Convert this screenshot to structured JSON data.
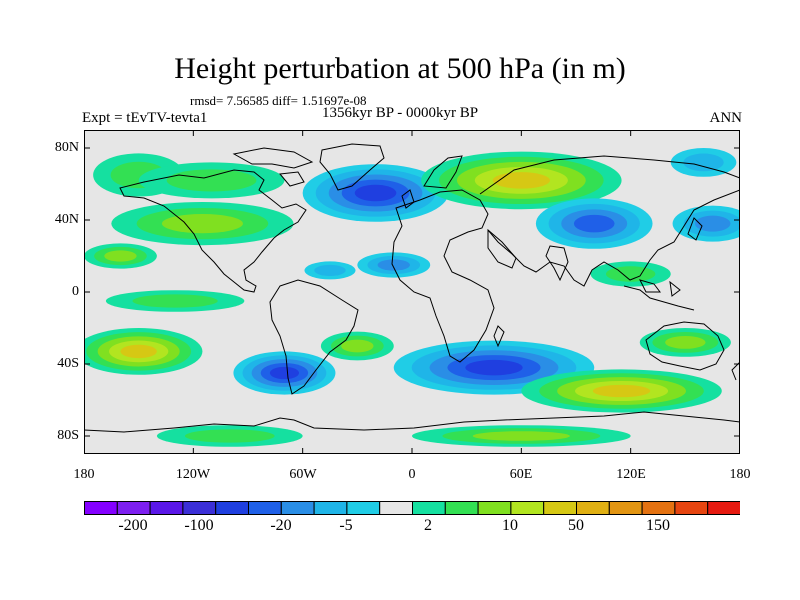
{
  "title": "Height perturbation at 500 hPa (in m)",
  "stats_line": "rmsd= 7.56585  diff= 1.51697e-08",
  "left_label": "Expt = tEvTV-tevta1",
  "center_label": "1356kyr BP - 0000kyr BP",
  "right_label": "ANN",
  "map": {
    "projection": "cylindrical equidistant",
    "lon_range": [
      -180,
      180
    ],
    "lat_range": [
      -90,
      90
    ],
    "background_color": "#e6e6e6",
    "coastline_color": "#000000",
    "lat_ticks": [
      {
        "lat": 80,
        "label": "80N"
      },
      {
        "lat": 40,
        "label": "40N"
      },
      {
        "lat": 0,
        "label": "0"
      },
      {
        "lat": -40,
        "label": "40S"
      },
      {
        "lat": -80,
        "label": "80S"
      }
    ],
    "lon_ticks": [
      {
        "lon": -180,
        "label": "180"
      },
      {
        "lon": -120,
        "label": "120W"
      },
      {
        "lon": -60,
        "label": "60W"
      },
      {
        "lon": 0,
        "label": "0"
      },
      {
        "lon": 60,
        "label": "60E"
      },
      {
        "lon": 120,
        "label": "120E"
      },
      {
        "lon": 180,
        "label": "180"
      }
    ],
    "anomaly_centers": [
      {
        "lon": -160,
        "lat": 20,
        "ry": 7,
        "rx": 20,
        "value": 5
      },
      {
        "lon": -115,
        "lat": 38,
        "ry": 12,
        "rx": 50,
        "value": 8
      },
      {
        "lon": -150,
        "lat": 65,
        "ry": 12,
        "rx": 25,
        "value": 4
      },
      {
        "lon": -110,
        "lat": 62,
        "ry": 10,
        "rx": 40,
        "value": 4
      },
      {
        "lon": -20,
        "lat": 55,
        "ry": 16,
        "rx": 40,
        "value": -40
      },
      {
        "lon": -10,
        "lat": 15,
        "ry": 7,
        "rx": 20,
        "value": -5
      },
      {
        "lon": -45,
        "lat": 12,
        "ry": 5,
        "rx": 14,
        "value": -4
      },
      {
        "lon": 60,
        "lat": 62,
        "ry": 16,
        "rx": 55,
        "value": 25
      },
      {
        "lon": 100,
        "lat": 38,
        "ry": 14,
        "rx": 32,
        "value": -14
      },
      {
        "lon": 165,
        "lat": 38,
        "ry": 10,
        "rx": 22,
        "value": -7
      },
      {
        "lon": 160,
        "lat": 72,
        "ry": 8,
        "rx": 18,
        "value": -4
      },
      {
        "lon": 120,
        "lat": 10,
        "ry": 7,
        "rx": 22,
        "value": 4
      },
      {
        "lon": -130,
        "lat": -5,
        "ry": 6,
        "rx": 38,
        "value": 4
      },
      {
        "lon": -150,
        "lat": -33,
        "ry": 13,
        "rx": 35,
        "value": 45
      },
      {
        "lon": -70,
        "lat": -45,
        "ry": 12,
        "rx": 28,
        "value": -40
      },
      {
        "lon": -30,
        "lat": -30,
        "ry": 8,
        "rx": 20,
        "value": 5
      },
      {
        "lon": 45,
        "lat": -42,
        "ry": 15,
        "rx": 55,
        "value": -45
      },
      {
        "lon": 115,
        "lat": -55,
        "ry": 12,
        "rx": 55,
        "value": 45
      },
      {
        "lon": 150,
        "lat": -28,
        "ry": 8,
        "rx": 25,
        "value": 6
      },
      {
        "lon": -100,
        "lat": -80,
        "ry": 6,
        "rx": 40,
        "value": 4
      },
      {
        "lon": 60,
        "lat": -80,
        "ry": 6,
        "rx": 60,
        "value": 5
      }
    ]
  },
  "colorbar": {
    "colors": [
      "#8400ff",
      "#7d1ff0",
      "#5a17e8",
      "#3b2fd7",
      "#1f3fe0",
      "#1f60e8",
      "#2a8ee6",
      "#1fb5e8",
      "#20cde6",
      "#e6e6e6",
      "#15e0a0",
      "#33e053",
      "#80e020",
      "#b2e520",
      "#d6c814",
      "#e0b013",
      "#e29512",
      "#e47211",
      "#e64510",
      "#e61a10"
    ],
    "tick_labels": [
      {
        "label": "-200",
        "index": 1
      },
      {
        "label": "-100",
        "index": 3
      },
      {
        "label": "-20",
        "index": 5
      },
      {
        "label": "-5",
        "index": 7
      },
      {
        "label": "2",
        "index": 10
      },
      {
        "label": "10",
        "index": 12
      },
      {
        "label": "50",
        "index": 14
      },
      {
        "label": "150",
        "index": 16
      }
    ],
    "levels": [
      -200,
      -150,
      -100,
      -50,
      -20,
      -10,
      -5,
      -2,
      -1,
      1,
      2,
      5,
      10,
      20,
      50,
      100,
      150,
      200
    ]
  }
}
